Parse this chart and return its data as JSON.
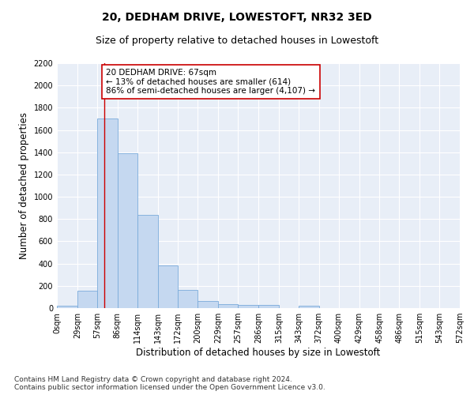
{
  "title": "20, DEDHAM DRIVE, LOWESTOFT, NR32 3ED",
  "subtitle": "Size of property relative to detached houses in Lowestoft",
  "xlabel": "Distribution of detached houses by size in Lowestoft",
  "ylabel": "Number of detached properties",
  "bar_color": "#c5d8f0",
  "bar_edge_color": "#7aabdb",
  "background_color": "#e8eef7",
  "grid_color": "#ffffff",
  "bin_edges": [
    0,
    29,
    57,
    86,
    114,
    143,
    172,
    200,
    229,
    257,
    286,
    315,
    343,
    372,
    400,
    429,
    458,
    486,
    515,
    543,
    572
  ],
  "bin_labels": [
    "0sqm",
    "29sqm",
    "57sqm",
    "86sqm",
    "114sqm",
    "143sqm",
    "172sqm",
    "200sqm",
    "229sqm",
    "257sqm",
    "286sqm",
    "315sqm",
    "343sqm",
    "372sqm",
    "400sqm",
    "429sqm",
    "458sqm",
    "486sqm",
    "515sqm",
    "543sqm",
    "572sqm"
  ],
  "bar_heights": [
    20,
    155,
    1700,
    1390,
    835,
    380,
    160,
    65,
    35,
    25,
    25,
    0,
    20,
    0,
    0,
    0,
    0,
    0,
    0,
    0
  ],
  "property_size": 67,
  "property_line_color": "#cc0000",
  "annotation_line1": "20 DEDHAM DRIVE: 67sqm",
  "annotation_line2": "← 13% of detached houses are smaller (614)",
  "annotation_line3": "86% of semi-detached houses are larger (4,107) →",
  "annotation_box_color": "#ffffff",
  "annotation_box_edge": "#cc0000",
  "ylim": [
    0,
    2200
  ],
  "yticks": [
    0,
    200,
    400,
    600,
    800,
    1000,
    1200,
    1400,
    1600,
    1800,
    2000,
    2200
  ],
  "footnote": "Contains HM Land Registry data © Crown copyright and database right 2024.\nContains public sector information licensed under the Open Government Licence v3.0.",
  "title_fontsize": 10,
  "subtitle_fontsize": 9,
  "xlabel_fontsize": 8.5,
  "ylabel_fontsize": 8.5,
  "tick_fontsize": 7,
  "annotation_fontsize": 7.5,
  "footnote_fontsize": 6.5
}
